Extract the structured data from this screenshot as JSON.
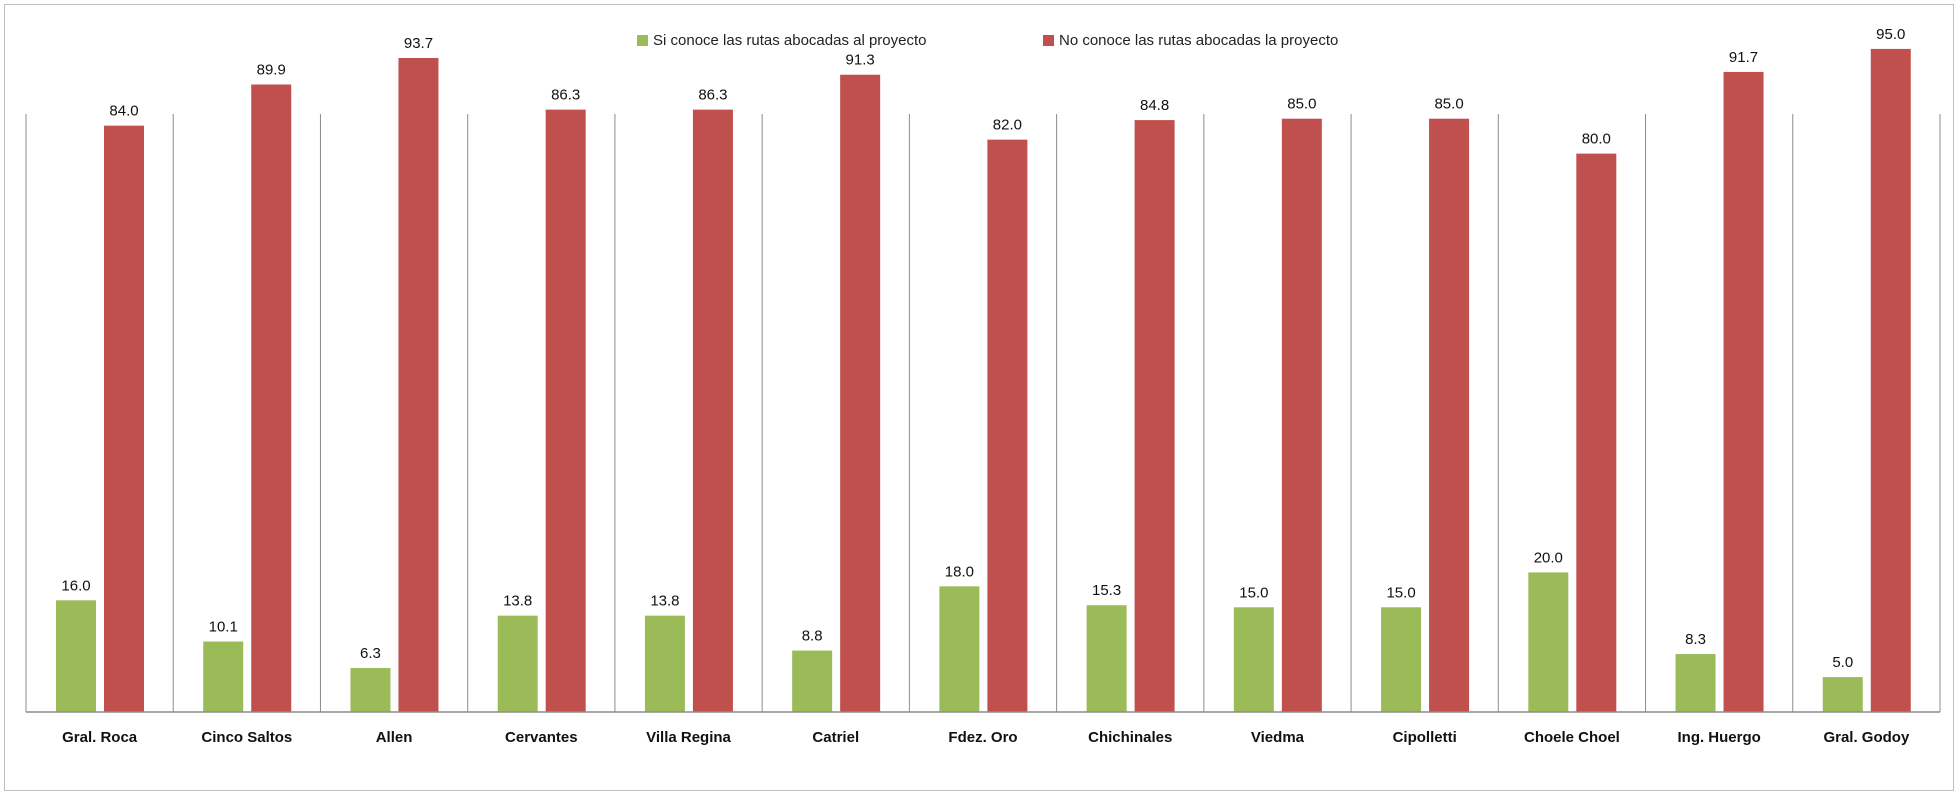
{
  "chart_data": {
    "type": "bar",
    "categories": [
      "Gral. Roca",
      "Cinco Saltos",
      "Allen",
      "Cervantes",
      "Villa Regina",
      "Catriel",
      "Fdez. Oro",
      "Chichinales",
      "Viedma",
      "Cipolletti",
      "Choele Choel",
      "Ing. Huergo",
      "Gral. Godoy"
    ],
    "series": [
      {
        "name": "Si conoce las rutas abocadas al proyecto",
        "color": "#9bbb59",
        "values": [
          16.0,
          10.1,
          6.3,
          13.8,
          13.8,
          8.8,
          18.0,
          15.3,
          15.0,
          15.0,
          20.0,
          8.3,
          5.0
        ]
      },
      {
        "name": "No conoce las rutas abocadas la proyecto",
        "color": "#c0504d",
        "values": [
          84.0,
          89.9,
          93.7,
          86.3,
          86.3,
          91.3,
          82.0,
          84.8,
          85.0,
          85.0,
          80.0,
          91.7,
          95.0
        ]
      }
    ],
    "title": "",
    "xlabel": "",
    "ylabel": "",
    "ylim": [
      0,
      100
    ],
    "value_format_decimals": 1,
    "legend_position": "top-center",
    "vertical_separators": true
  }
}
